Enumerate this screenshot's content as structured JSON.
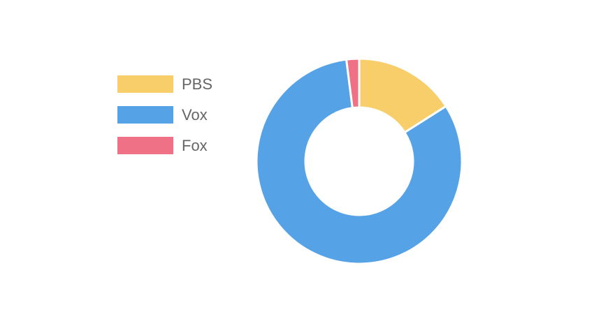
{
  "chart_data": {
    "type": "pie",
    "variant": "doughnut",
    "categories": [
      "PBS",
      "Vox",
      "Fox"
    ],
    "values": [
      16,
      82,
      2
    ],
    "colors": [
      "#f8ce6b",
      "#55a3e6",
      "#ef7185"
    ],
    "legend_position": "left",
    "title": ""
  }
}
